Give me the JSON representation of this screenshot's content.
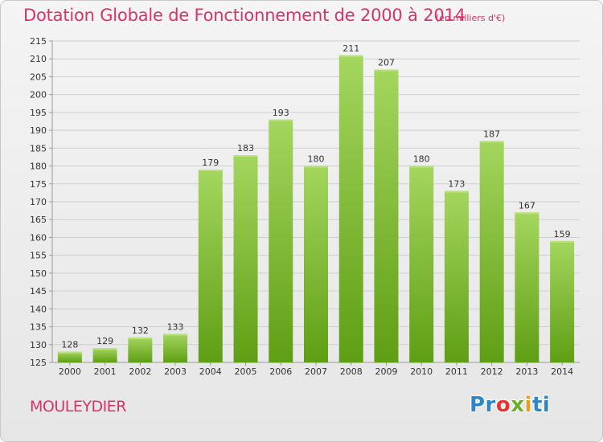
{
  "header": {
    "title": "Dotation Globale de Fonctionnement de 2000 à 2014",
    "unit_note": "(en milliers d'€)"
  },
  "footer": {
    "commune": "MOULEYDIER",
    "logo": [
      "Pr",
      "o",
      "x",
      "i",
      "ti"
    ]
  },
  "colors": {
    "title": "#d6336c",
    "bar_top": "#a4d65e",
    "bar_bottom": "#5f9e14",
    "grid": "#cfcfcf"
  },
  "chart_data": {
    "type": "bar",
    "title": "Dotation Globale de Fonctionnement de 2000 à 2014",
    "subtitle": "(en milliers d'€)",
    "xlabel": "",
    "ylabel": "",
    "categories": [
      "2000",
      "2001",
      "2002",
      "2003",
      "2004",
      "2005",
      "2006",
      "2007",
      "2008",
      "2009",
      "2010",
      "2011",
      "2012",
      "2013",
      "2014"
    ],
    "values": [
      128,
      129,
      132,
      133,
      179,
      183,
      193,
      180,
      211,
      207,
      180,
      173,
      187,
      167,
      159
    ],
    "ylim": [
      125,
      215
    ],
    "yticks": [
      125,
      130,
      135,
      140,
      145,
      150,
      155,
      160,
      165,
      170,
      175,
      180,
      185,
      190,
      195,
      200,
      205,
      210,
      215
    ],
    "grid": true,
    "legend": "none"
  }
}
